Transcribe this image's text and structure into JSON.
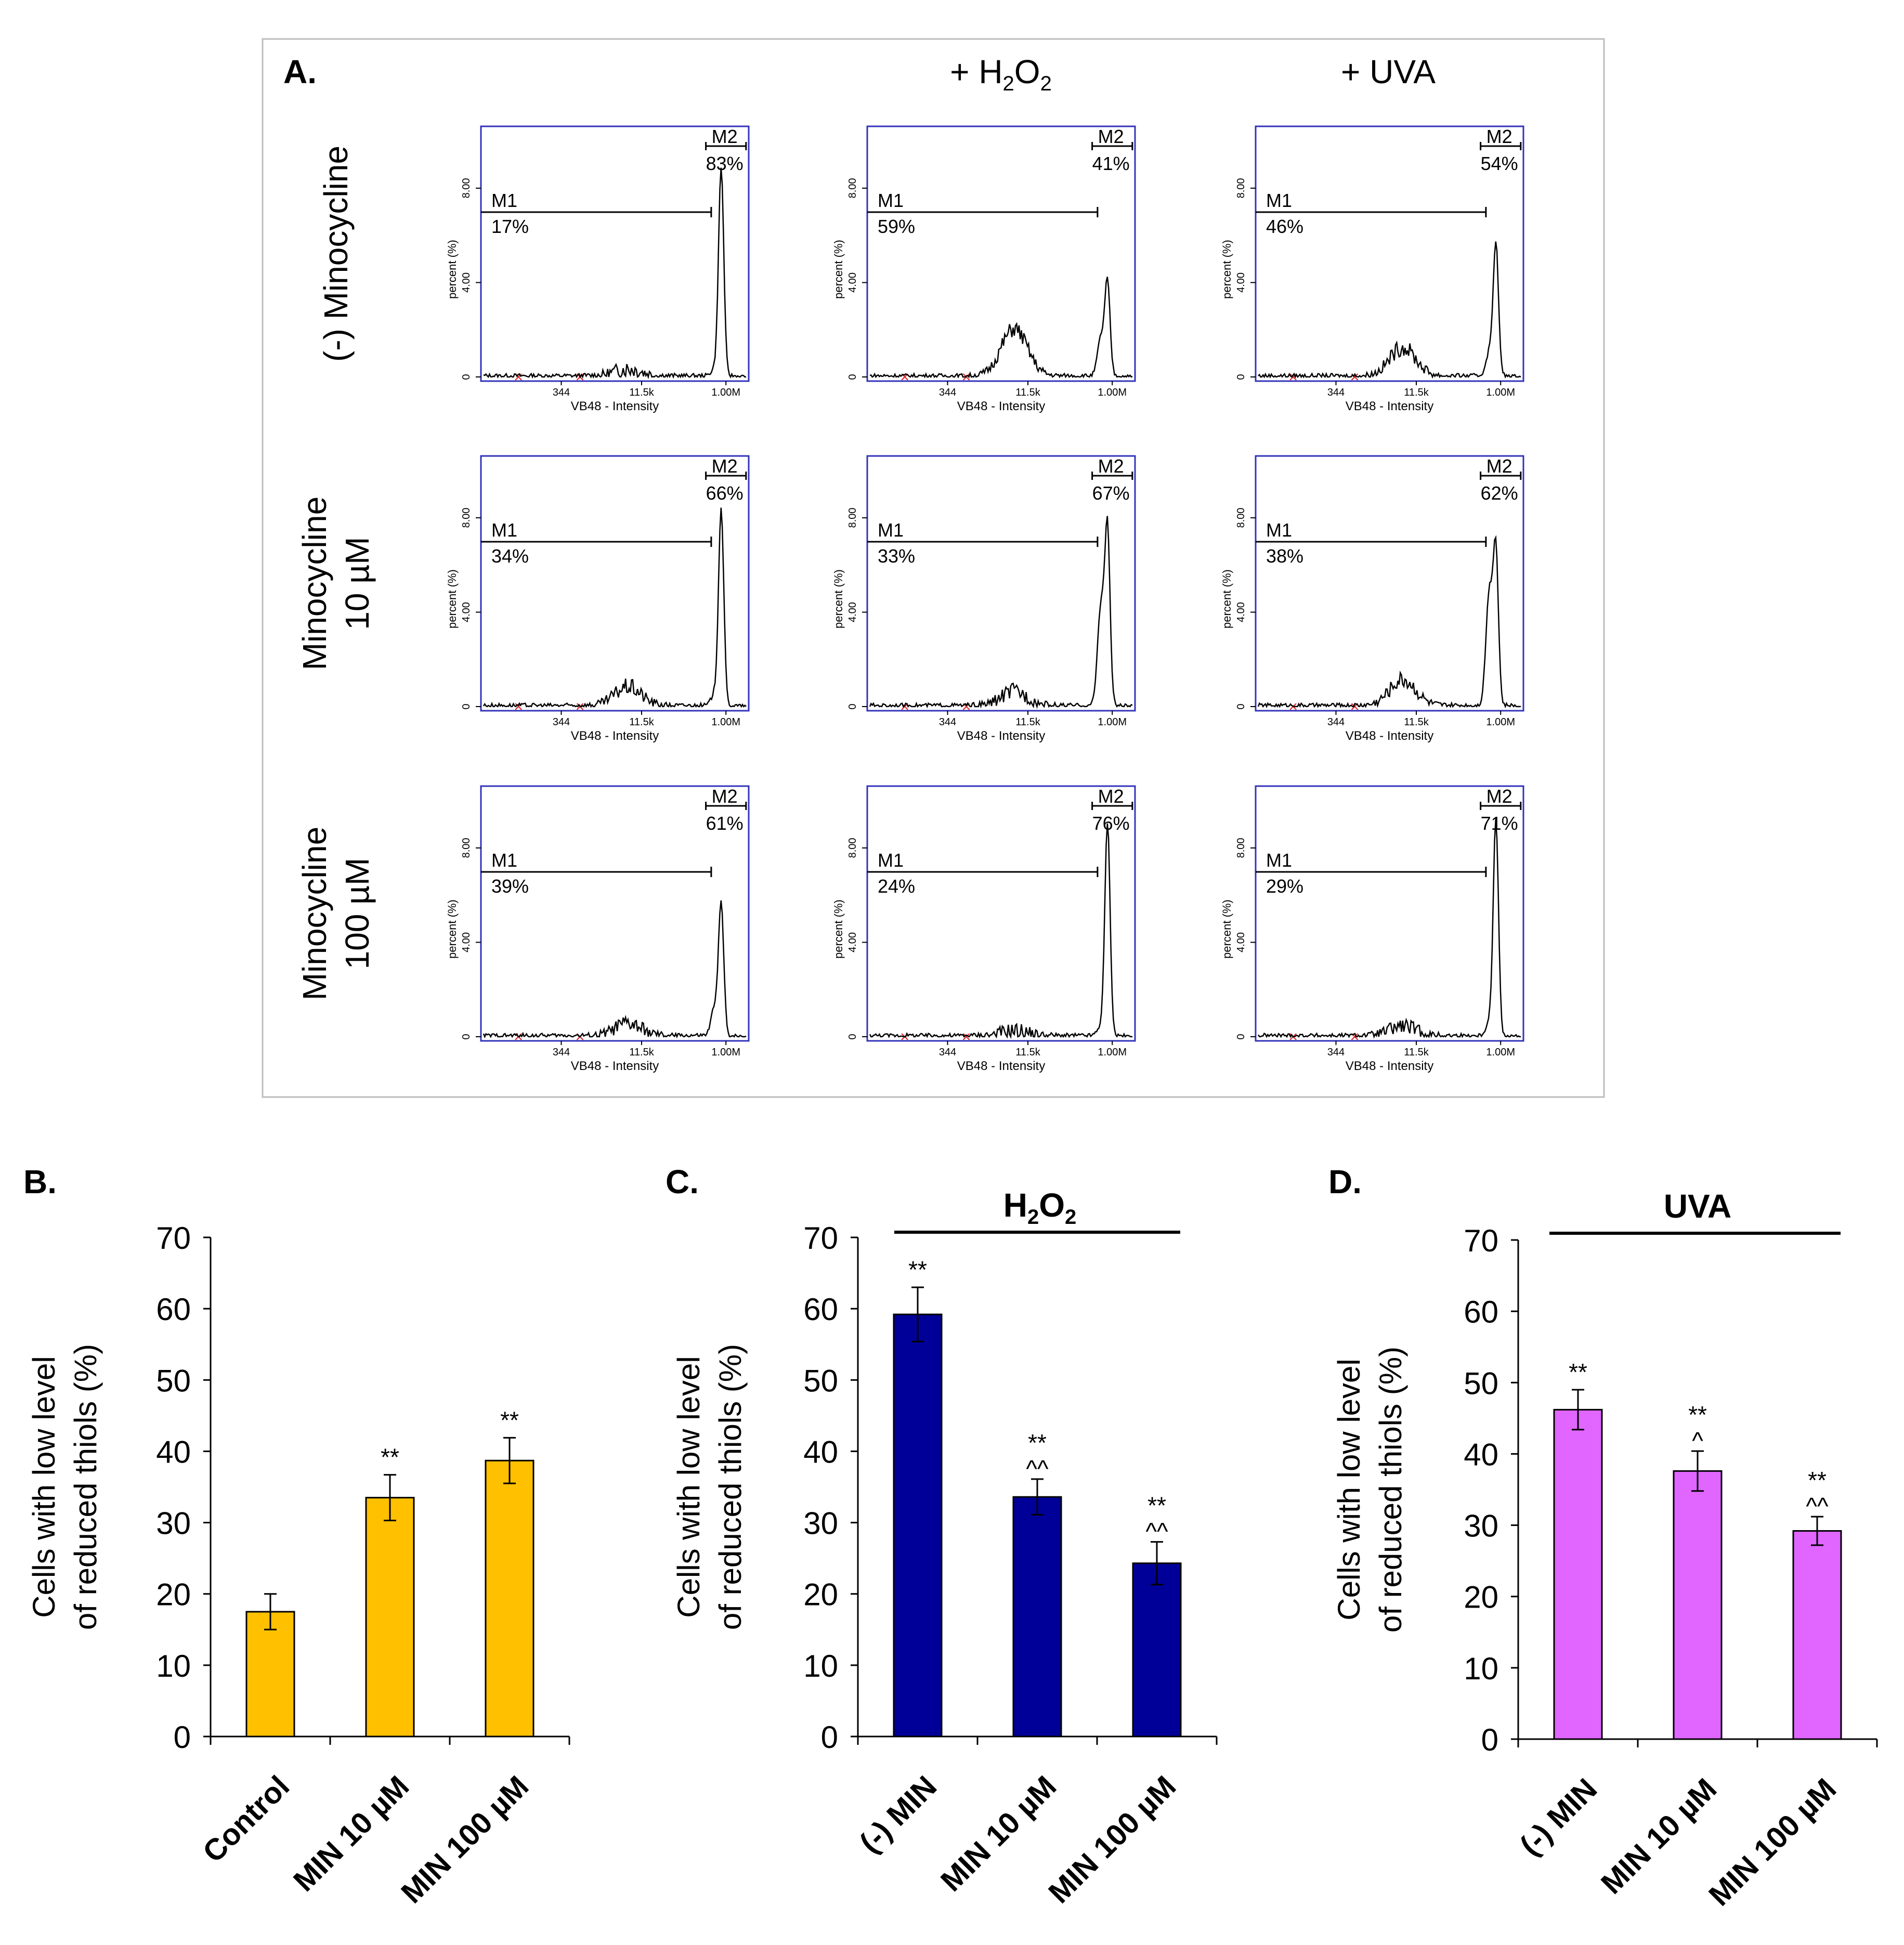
{
  "panel_a": {
    "label": "A.",
    "col_headers": [
      "",
      "+ H2O2",
      "+ UVA"
    ],
    "row_headers": [
      [
        "(-) Minocycline"
      ],
      [
        "Minocycline",
        "10 µM"
      ],
      [
        "Minocycline",
        "100 µM"
      ]
    ],
    "hist_text": {
      "ylabel": "percent (%)",
      "xlabel": "VB48 - Intensity",
      "yticks": [
        "0",
        "4.00",
        "8.00"
      ],
      "xticks": [
        "344",
        "11.5k",
        "1.00M"
      ],
      "m1": "M1",
      "m2": "M2"
    },
    "histograms": [
      {
        "row": 0,
        "col": 0,
        "m1": "17%",
        "m2": "83%",
        "peak": 8.8,
        "shoulder": 0.3,
        "mid": 0.3
      },
      {
        "row": 0,
        "col": 1,
        "m1": "59%",
        "m2": "41%",
        "peak": 3.9,
        "shoulder": 1.6,
        "mid": 2.0
      },
      {
        "row": 0,
        "col": 2,
        "m1": "46%",
        "m2": "54%",
        "peak": 5.6,
        "shoulder": 1.0,
        "mid": 1.2
      },
      {
        "row": 1,
        "col": 0,
        "m1": "34%",
        "m2": "66%",
        "peak": 8.3,
        "shoulder": 0.5,
        "mid": 0.8
      },
      {
        "row": 1,
        "col": 1,
        "m1": "33%",
        "m2": "67%",
        "peak": 7.3,
        "shoulder": 4.2,
        "mid": 0.6
      },
      {
        "row": 1,
        "col": 2,
        "m1": "38%",
        "m2": "62%",
        "peak": 6.4,
        "shoulder": 4.8,
        "mid": 1.1
      },
      {
        "row": 2,
        "col": 0,
        "m1": "39%",
        "m2": "61%",
        "peak": 5.5,
        "shoulder": 1.2,
        "mid": 0.5
      },
      {
        "row": 2,
        "col": 1,
        "m1": "24%",
        "m2": "76%",
        "peak": 9.0,
        "shoulder": 0.4,
        "mid": 0.2
      },
      {
        "row": 2,
        "col": 2,
        "m1": "29%",
        "m2": "71%",
        "peak": 9.1,
        "shoulder": 0.6,
        "mid": 0.4
      }
    ]
  },
  "chart_data": [
    {
      "type": "bar",
      "panel": "B.",
      "title": "",
      "xlabel": "",
      "ylabel": [
        "Cells with low level",
        "of reduced thiols (%)"
      ],
      "ylim": [
        0,
        70
      ],
      "yticks": [
        0,
        10,
        20,
        30,
        40,
        50,
        60,
        70
      ],
      "categories": [
        "Control",
        "MIN 10 µM",
        "MIN 100 µM"
      ],
      "values": [
        17.5,
        33.5,
        38.7
      ],
      "errors": [
        2.5,
        3.2,
        3.2
      ],
      "annotations": [
        [],
        [
          "**"
        ],
        [
          "**"
        ]
      ],
      "color": "#FFC000",
      "treatment": ""
    },
    {
      "type": "bar",
      "panel": "C.",
      "title": "",
      "xlabel": "",
      "ylabel": [
        "Cells with low level",
        "of reduced thiols (%)"
      ],
      "ylim": [
        0,
        70
      ],
      "yticks": [
        0,
        10,
        20,
        30,
        40,
        50,
        60,
        70
      ],
      "categories": [
        "(-) MIN",
        "MIN 10 µM",
        "MIN 100 µM"
      ],
      "values": [
        59.2,
        33.6,
        24.3
      ],
      "errors": [
        3.8,
        2.5,
        3.0
      ],
      "annotations": [
        [
          "**"
        ],
        [
          "**",
          "^^"
        ],
        [
          "**",
          "^^"
        ]
      ],
      "color": "#000099",
      "treatment": "H2O2"
    },
    {
      "type": "bar",
      "panel": "D.",
      "title": "",
      "xlabel": "",
      "ylabel": [
        "Cells with low level",
        "of reduced thiols (%)"
      ],
      "ylim": [
        0,
        70
      ],
      "yticks": [
        0,
        10,
        20,
        30,
        40,
        50,
        60,
        70
      ],
      "categories": [
        "(-) MIN",
        "MIN 10 µM",
        "MIN 100 µM"
      ],
      "values": [
        46.2,
        37.6,
        29.2
      ],
      "errors": [
        2.8,
        2.8,
        2.0
      ],
      "annotations": [
        [
          "**"
        ],
        [
          "**",
          "^"
        ],
        [
          "**",
          "^^"
        ]
      ],
      "color": "#E066FF",
      "treatment": "UVA"
    }
  ]
}
